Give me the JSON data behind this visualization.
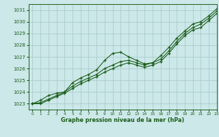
{
  "title": "Graphe pression niveau de la mer (hPa)",
  "bg_color": "#cce8e8",
  "grid_color": "#aacccc",
  "line_color": "#1a5c1a",
  "xlim": [
    -0.5,
    23
  ],
  "ylim": [
    1022.5,
    1031.5
  ],
  "yticks": [
    1023,
    1024,
    1025,
    1026,
    1027,
    1028,
    1029,
    1030,
    1031
  ],
  "xticks": [
    0,
    1,
    2,
    3,
    4,
    5,
    6,
    7,
    8,
    9,
    10,
    11,
    12,
    13,
    14,
    15,
    16,
    17,
    18,
    19,
    20,
    21,
    22,
    23
  ],
  "series1": [
    1023.0,
    1023.3,
    1023.7,
    1023.9,
    1024.0,
    1024.8,
    1025.2,
    1025.5,
    1025.9,
    1026.7,
    1027.3,
    1027.4,
    1027.0,
    1026.7,
    1026.4,
    1026.5,
    1027.1,
    1027.8,
    1028.6,
    1029.2,
    1029.8,
    1030.0,
    1030.5,
    1031.1
  ],
  "series2": [
    1023.0,
    1023.1,
    1023.4,
    1023.7,
    1024.0,
    1024.5,
    1024.9,
    1025.2,
    1025.5,
    1026.0,
    1026.3,
    1026.6,
    1026.7,
    1026.5,
    1026.3,
    1026.5,
    1026.8,
    1027.5,
    1028.3,
    1029.0,
    1029.5,
    1029.8,
    1030.3,
    1030.9
  ],
  "series3": [
    1023.0,
    1023.0,
    1023.3,
    1023.6,
    1023.9,
    1024.3,
    1024.7,
    1025.0,
    1025.3,
    1025.7,
    1026.0,
    1026.3,
    1026.5,
    1026.3,
    1026.1,
    1026.3,
    1026.6,
    1027.3,
    1028.1,
    1028.8,
    1029.3,
    1029.5,
    1030.1,
    1030.7
  ]
}
